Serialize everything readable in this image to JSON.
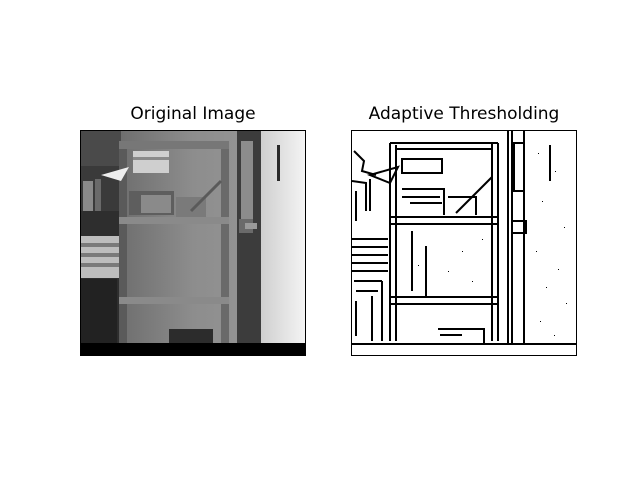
{
  "panels": [
    {
      "title": "Original Image",
      "content": "grayscale photograph of a metal shelving unit next to a door"
    },
    {
      "title": "Adaptive Thresholding",
      "content": "binary edge-like thresholded version of the same photograph"
    }
  ],
  "colors": {
    "background": "#ffffff",
    "frame": "#000000"
  }
}
